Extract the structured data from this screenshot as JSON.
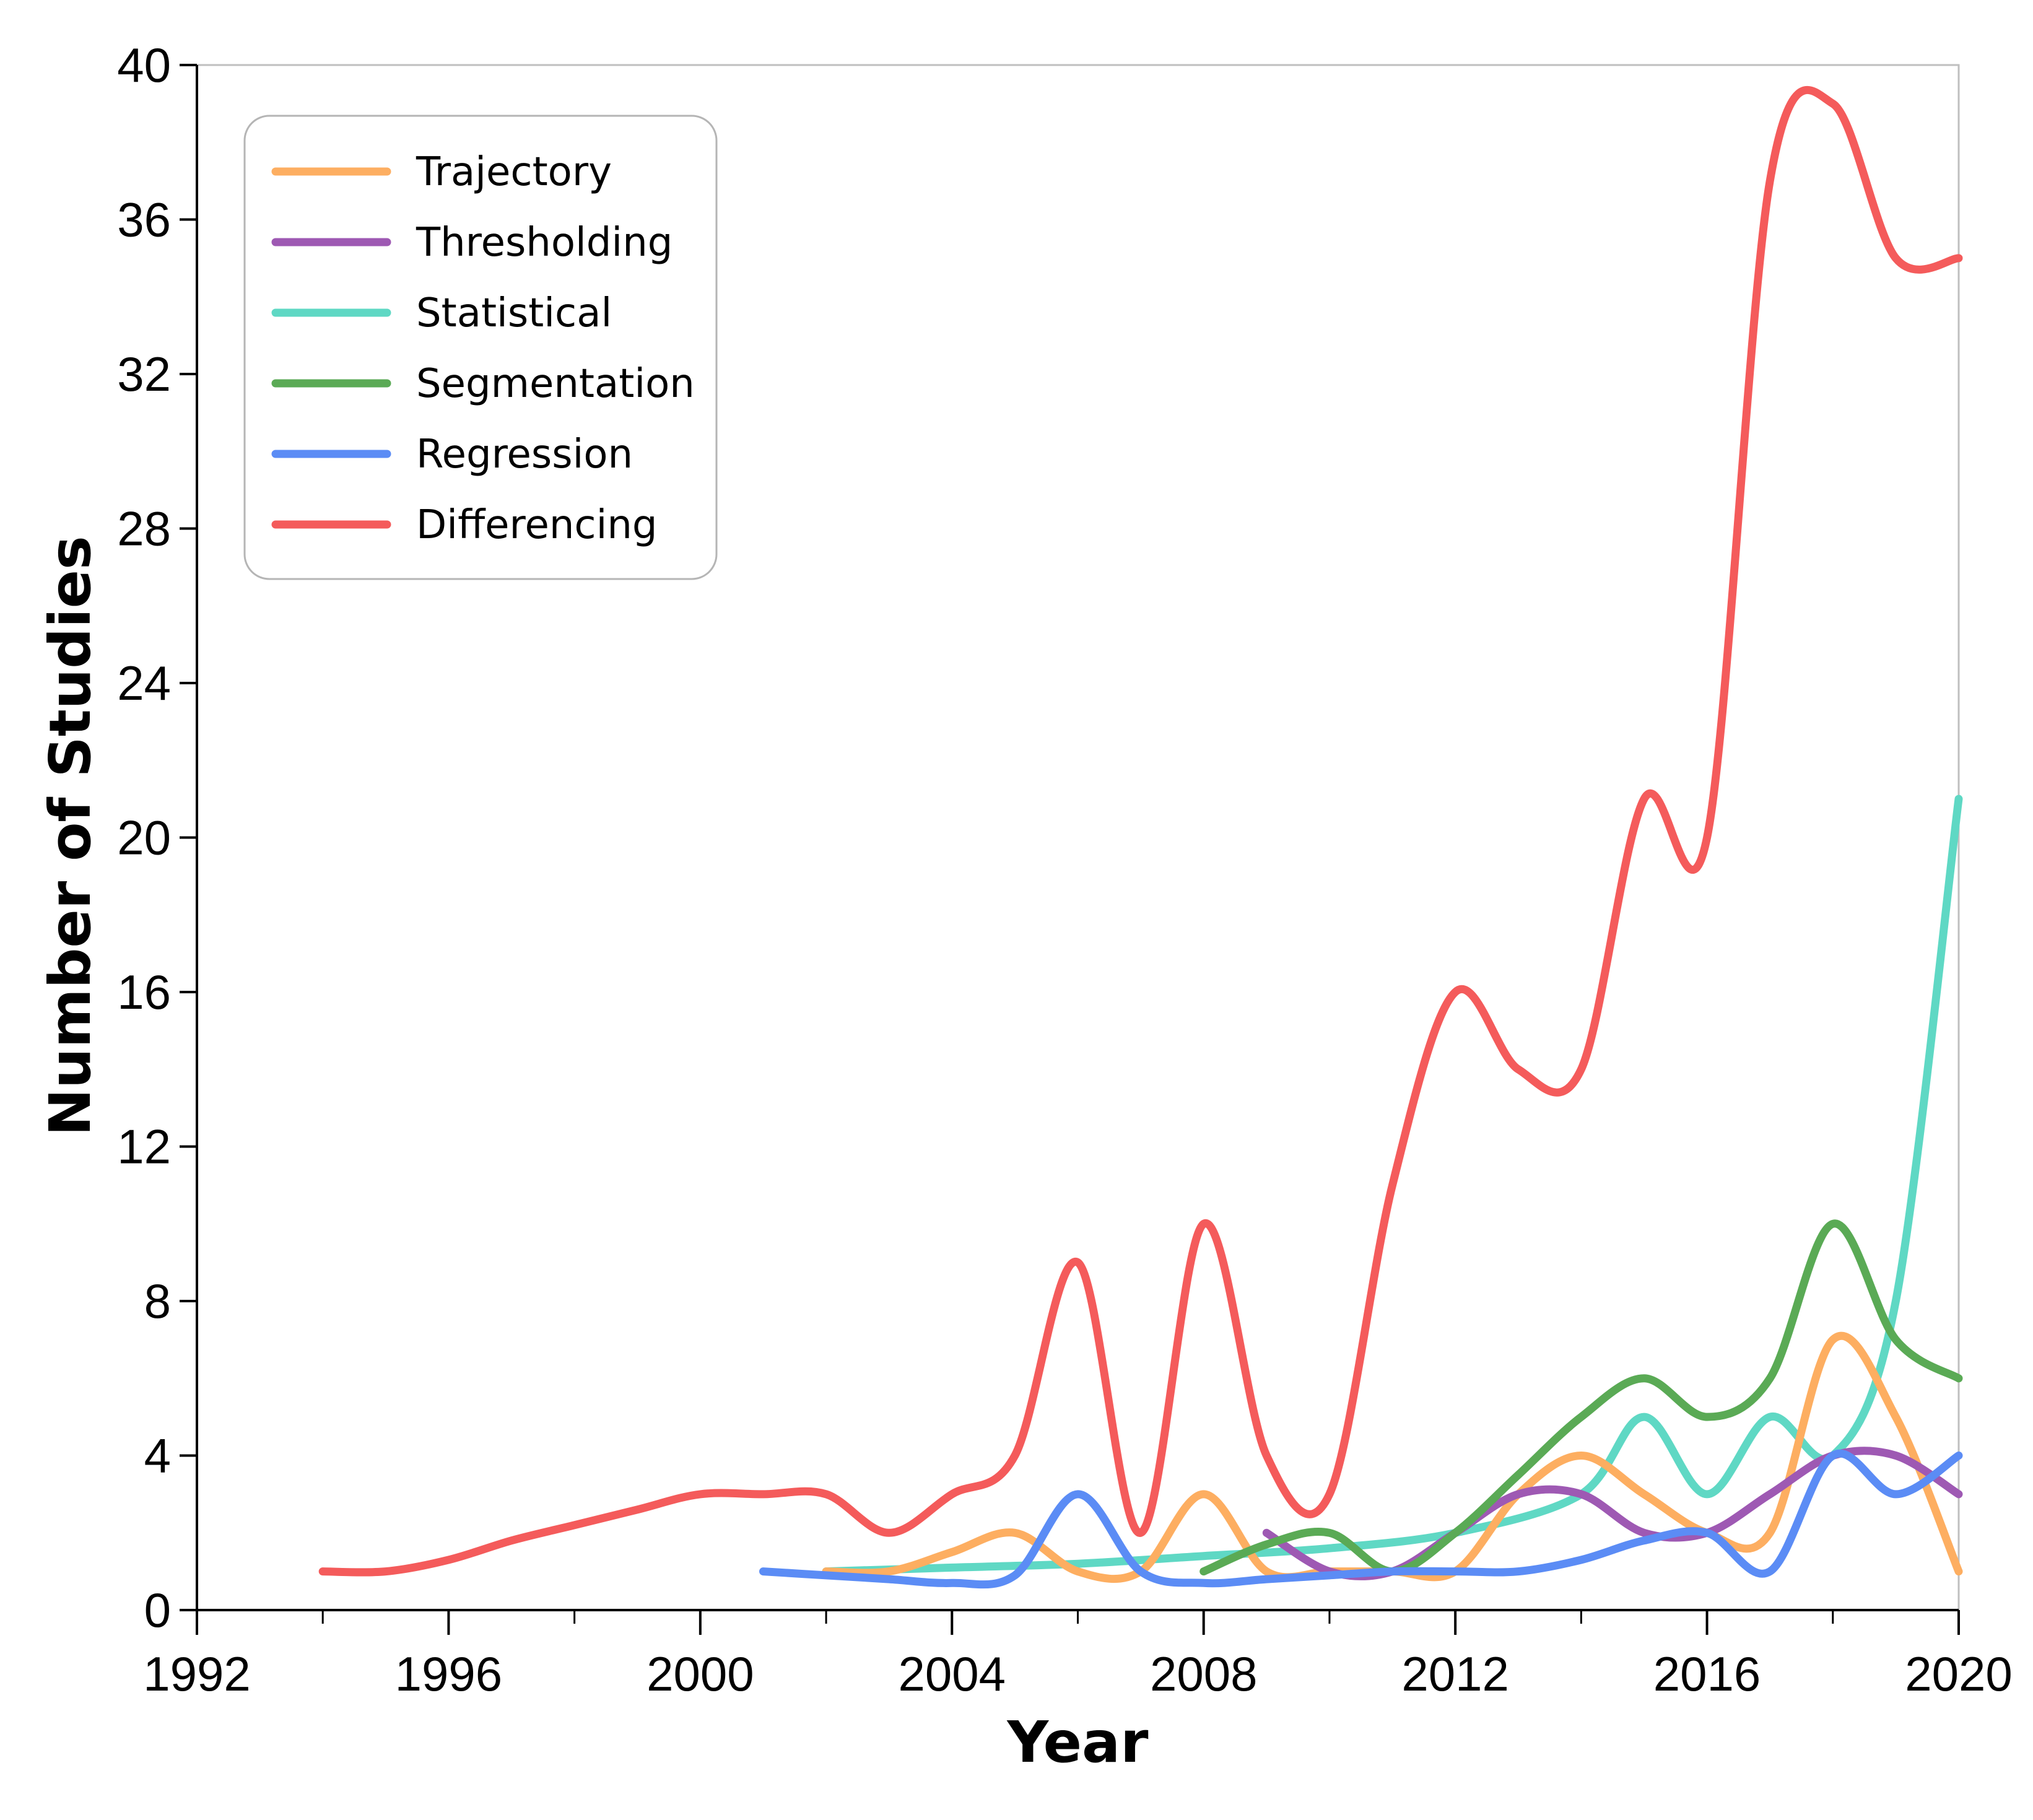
{
  "chart_data": {
    "type": "line",
    "title": "",
    "xlabel": "Year",
    "ylabel": "Number of Studies",
    "xlim": [
      1992,
      2020
    ],
    "ylim": [
      0,
      40
    ],
    "xticks": [
      "1992",
      "1996",
      "2000",
      "2004",
      "2008",
      "2012",
      "2016",
      "2020"
    ],
    "yticks": [
      "0",
      "4",
      "8",
      "12",
      "16",
      "20",
      "24",
      "28",
      "32",
      "36",
      "40"
    ],
    "grid": false,
    "legend_position": "top-left",
    "series": [
      {
        "name": "Trajectory",
        "color": "#FDAE61",
        "x": [
          2002,
          2003,
          2004,
          2005,
          2006,
          2007,
          2008,
          2009,
          2010,
          2011,
          2012,
          2013,
          2014,
          2015,
          2016,
          2017,
          2018,
          2019,
          2020
        ],
        "y": [
          1,
          1,
          1.5,
          2,
          1,
          1,
          3,
          1,
          1,
          1,
          1,
          3,
          4,
          3,
          2,
          2,
          7,
          5,
          1
        ]
      },
      {
        "name": "Thresholding",
        "color": "#9E59B3",
        "x": [
          2009,
          2010,
          2011,
          2012,
          2013,
          2014,
          2015,
          2016,
          2017,
          2018,
          2019,
          2020
        ],
        "y": [
          2,
          1,
          1,
          2,
          3,
          3,
          2,
          2,
          3,
          4,
          4,
          3
        ]
      },
      {
        "name": "Statistical",
        "color": "#5FD8C4",
        "x": [
          2002,
          2004,
          2006,
          2008,
          2010,
          2012,
          2014,
          2015,
          2016,
          2017,
          2018,
          2019,
          2020
        ],
        "y": [
          1,
          1.1,
          1.2,
          1.4,
          1.6,
          2,
          3,
          5,
          3,
          5,
          4,
          8,
          21
        ]
      },
      {
        "name": "Segmentation",
        "color": "#5AAA55",
        "x": [
          2008,
          2009,
          2010,
          2011,
          2012,
          2013,
          2014,
          2015,
          2016,
          2017,
          2018,
          2019,
          2020
        ],
        "y": [
          1,
          1.7,
          2,
          1,
          2,
          3.5,
          5,
          6,
          5,
          6,
          10,
          7,
          6
        ]
      },
      {
        "name": "Regression",
        "color": "#5B8CF5",
        "x": [
          2001,
          2002,
          2003,
          2004,
          2005,
          2006,
          2007,
          2008,
          2009,
          2010,
          2011,
          2012,
          2013,
          2014,
          2015,
          2016,
          2017,
          2018,
          2019,
          2020
        ],
        "y": [
          1,
          0.9,
          0.8,
          0.7,
          0.9,
          3,
          1,
          0.7,
          0.8,
          0.9,
          1,
          1,
          1,
          1.3,
          1.8,
          2,
          1,
          4,
          3,
          4
        ]
      },
      {
        "name": "Differencing",
        "color": "#F45B5B",
        "x": [
          1994,
          1995,
          1996,
          1997,
          1998,
          1999,
          2000,
          2001,
          2002,
          2003,
          2004,
          2005,
          2006,
          2007,
          2008,
          2009,
          2010,
          2011,
          2012,
          2013,
          2014,
          2015,
          2016,
          2017,
          2018,
          2019,
          2020
        ],
        "y": [
          1,
          1,
          1.3,
          1.8,
          2.2,
          2.6,
          3,
          3,
          3,
          2,
          3,
          4,
          9,
          2,
          10,
          4,
          3,
          11,
          16,
          14,
          14,
          21,
          20,
          37,
          39,
          35,
          35
        ]
      }
    ]
  }
}
